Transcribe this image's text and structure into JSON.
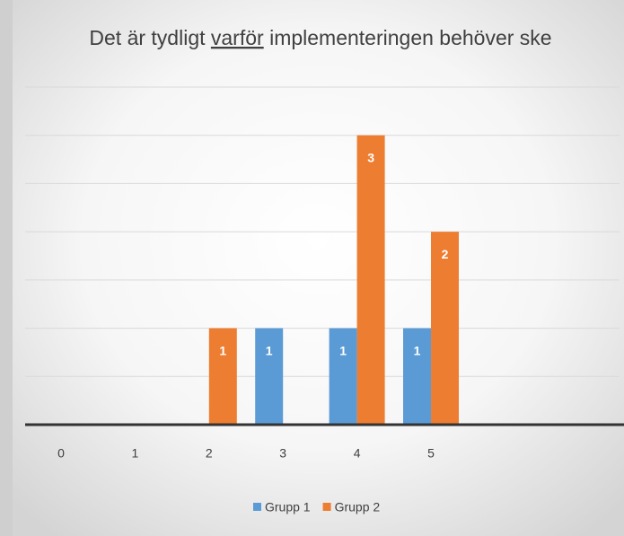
{
  "chart_data": {
    "type": "bar",
    "title": [
      "Det är tydligt ",
      "varför",
      " implementeringen behöver ske"
    ],
    "categories": [
      "0",
      "1",
      "2",
      "3",
      "4",
      "5",
      null,
      null
    ],
    "series": [
      {
        "name": "Grupp 1",
        "color": "#5b9bd5",
        "values": [
          null,
          null,
          null,
          1,
          1,
          1,
          null,
          null
        ]
      },
      {
        "name": "Grupp 2",
        "color": "#ed7d31",
        "values": [
          null,
          null,
          1,
          null,
          3,
          2,
          null,
          null
        ]
      }
    ],
    "ylim": [
      0,
      3.5
    ],
    "yticks": [
      0,
      0.5,
      1,
      1.5,
      2,
      2.5,
      3,
      3.5
    ],
    "grid": true,
    "legend": "bottom"
  }
}
